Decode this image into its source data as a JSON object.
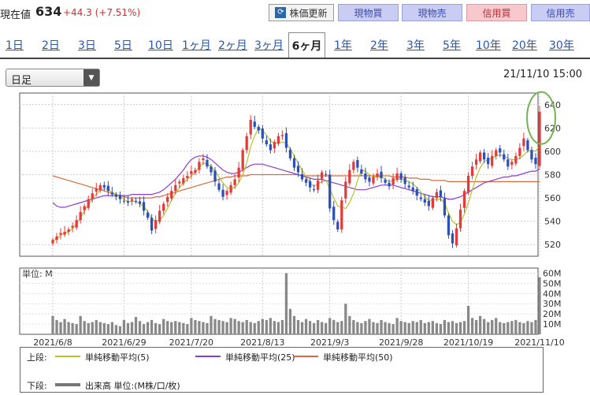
{
  "header": {
    "price_label": "現在値",
    "price": "634",
    "change": "+44.3 (+7.51%)",
    "update_button": "株価更新",
    "actions": [
      "現物買",
      "現物売",
      "信用買",
      "信用売"
    ]
  },
  "period_tabs": [
    "1日",
    "2日",
    "3日",
    "5日",
    "10日",
    "1ヶ月",
    "2ヶ月",
    "3ヶ月",
    "6ヶ月",
    "1年",
    "2年",
    "3年",
    "5年",
    "10年",
    "20年",
    "30年"
  ],
  "active_tab": "6ヶ月",
  "interval_select": "日足",
  "timestamp": "21/11/10 15:00",
  "colors": {
    "up": "#e23b3b",
    "down": "#2c4fb8",
    "ma5": "#b6c42a",
    "ma25": "#8a3fcf",
    "ma50": "#d96a3e",
    "volume": "#888888",
    "highlight": "#76b255"
  },
  "chart_data": [
    {
      "type": "candlestick",
      "ylim": [
        510,
        650
      ],
      "yticks": [
        520,
        540,
        560,
        580,
        600,
        620,
        640
      ],
      "x_tick_labels": [
        "2021/6/8",
        "2021/6/29",
        "2021/7/20",
        "2021/8/13",
        "2021/9/3",
        "2021/9/28",
        "2021/10/19",
        "2021/11/10"
      ],
      "close_series": [
        524,
        527,
        530,
        531,
        533,
        536,
        541,
        548,
        553,
        559,
        564,
        568,
        571,
        569,
        566,
        563,
        561,
        559,
        557,
        556,
        559,
        557,
        555,
        549,
        543,
        532,
        541,
        549,
        555,
        561,
        566,
        571,
        574,
        577,
        579,
        583,
        584,
        591,
        594,
        587,
        582,
        574,
        567,
        561,
        566,
        571,
        576,
        586,
        601,
        613,
        627,
        621,
        618,
        611,
        606,
        601,
        608,
        613,
        614,
        603,
        594,
        586,
        582,
        576,
        573,
        569,
        567,
        575,
        582,
        580,
        551,
        541,
        533,
        558,
        574,
        584,
        591,
        586,
        581,
        576,
        574,
        578,
        581,
        577,
        573,
        570,
        577,
        581,
        576,
        572,
        569,
        566,
        562,
        559,
        556,
        553,
        560,
        565,
        561,
        545,
        528,
        521,
        534,
        550,
        566,
        579,
        587,
        593,
        599,
        593,
        589,
        596,
        601,
        599,
        593,
        587,
        591,
        596,
        603,
        611,
        601,
        593,
        589,
        634
      ],
      "ma5_series": [
        523,
        525,
        528,
        530,
        531,
        534,
        538,
        543,
        549,
        554,
        559,
        563,
        567,
        568,
        567,
        565,
        563,
        561,
        559,
        557,
        557,
        557,
        555,
        553,
        548,
        542,
        540,
        541,
        545,
        551,
        558,
        564,
        569,
        573,
        576,
        579,
        582,
        586,
        590,
        589,
        587,
        583,
        578,
        573,
        569,
        568,
        569,
        573,
        580,
        590,
        604,
        613,
        620,
        618,
        614,
        609,
        607,
        607,
        608,
        607,
        602,
        596,
        590,
        584,
        578,
        573,
        570,
        572,
        574,
        575,
        568,
        560,
        553,
        552,
        551,
        556,
        564,
        575,
        584,
        583,
        580,
        578,
        578,
        578,
        576,
        574,
        575,
        576,
        576,
        575,
        574,
        572,
        569,
        565,
        561,
        558,
        558,
        559,
        559,
        556,
        547,
        540,
        537,
        539,
        546,
        556,
        567,
        578,
        586,
        591,
        593,
        594,
        596,
        597,
        596,
        594,
        593,
        593,
        594,
        597,
        600,
        601,
        600,
        605
      ],
      "ma25_series": [
        556,
        553,
        552,
        552,
        553,
        554,
        555,
        556,
        557,
        558,
        559,
        560,
        561,
        562,
        562,
        562,
        562,
        562,
        562,
        562,
        563,
        563,
        563,
        563,
        563,
        563,
        564,
        565,
        567,
        570,
        573,
        576,
        580,
        584,
        589,
        593,
        595,
        596,
        596,
        595,
        593,
        590,
        587,
        584,
        582,
        581,
        581,
        582,
        584,
        586,
        588,
        589,
        589,
        589,
        588,
        587,
        586,
        585,
        584,
        583,
        582,
        581,
        580,
        579,
        578,
        577,
        576,
        576,
        576,
        575,
        574,
        573,
        572,
        571,
        570,
        569,
        568,
        567,
        567,
        567,
        568,
        569,
        570,
        571,
        571,
        571,
        571,
        570,
        569,
        568,
        567,
        566,
        565,
        564,
        563,
        562,
        561,
        561,
        561,
        560,
        559,
        559,
        560,
        561,
        563,
        565,
        567,
        569,
        571,
        573,
        574,
        575,
        576,
        577,
        578,
        578,
        579,
        579,
        580,
        581,
        582,
        583,
        583,
        585
      ],
      "ma50_series": [
        579,
        578,
        577,
        576,
        575,
        574,
        573,
        572,
        571,
        570,
        569,
        568,
        567,
        566,
        565,
        564,
        563,
        562,
        561,
        560,
        560,
        560,
        560,
        560,
        560,
        560,
        561,
        561,
        562,
        563,
        564,
        565,
        566,
        567,
        568,
        569,
        570,
        571,
        572,
        573,
        574,
        575,
        576,
        577,
        578,
        578,
        579,
        579,
        579,
        579,
        580,
        580,
        580,
        580,
        580,
        580,
        580,
        580,
        580,
        580,
        580,
        580,
        580,
        579,
        579,
        579,
        579,
        579,
        579,
        579,
        579,
        579,
        579,
        579,
        579,
        579,
        579,
        579,
        579,
        579,
        579,
        579,
        579,
        579,
        579,
        579,
        578,
        578,
        578,
        578,
        577,
        577,
        577,
        576,
        576,
        576,
        575,
        575,
        575,
        575,
        574,
        574,
        574,
        574,
        574,
        574,
        574,
        574,
        574,
        574,
        574,
        574,
        574,
        574,
        574,
        574,
        574,
        574,
        574,
        574,
        574,
        574,
        574,
        574
      ]
    },
    {
      "type": "bar",
      "title": "単位: M",
      "ylim": [
        0,
        65
      ],
      "yticks": [
        "10M",
        "20M",
        "30M",
        "40M",
        "50M",
        "60M"
      ],
      "yticks_values": [
        10,
        20,
        30,
        40,
        50,
        60
      ],
      "values": [
        18,
        14,
        12,
        15,
        12,
        11,
        10,
        18,
        13,
        11,
        12,
        14,
        12,
        11,
        10,
        12,
        9,
        8,
        14,
        11,
        12,
        17,
        13,
        10,
        12,
        14,
        11,
        10,
        15,
        13,
        12,
        13,
        12,
        11,
        10,
        16,
        14,
        13,
        12,
        11,
        18,
        15,
        14,
        13,
        12,
        16,
        15,
        13,
        12,
        14,
        12,
        11,
        13,
        15,
        14,
        16,
        13,
        12,
        14,
        60,
        25,
        18,
        14,
        12,
        15,
        13,
        11,
        14,
        12,
        11,
        16,
        14,
        12,
        13,
        30,
        18,
        14,
        12,
        11,
        13,
        15,
        12,
        11,
        14,
        12,
        11,
        10,
        16,
        13,
        12,
        11,
        13,
        12,
        14,
        11,
        12,
        13,
        11,
        10,
        14,
        12,
        13,
        11,
        12,
        13,
        28,
        16,
        14,
        18,
        15,
        12,
        14,
        16,
        12,
        11,
        12,
        13,
        14,
        12,
        11,
        13,
        12,
        14,
        56
      ]
    }
  ],
  "legend": {
    "upper_label": "上段:",
    "lower_label": "下段:",
    "ma5": "単純移動平均(5)",
    "ma25": "単純移動平均(25)",
    "ma50": "単純移動平均(50)",
    "volume": "出来高 単位:(M株/口/枚)"
  }
}
